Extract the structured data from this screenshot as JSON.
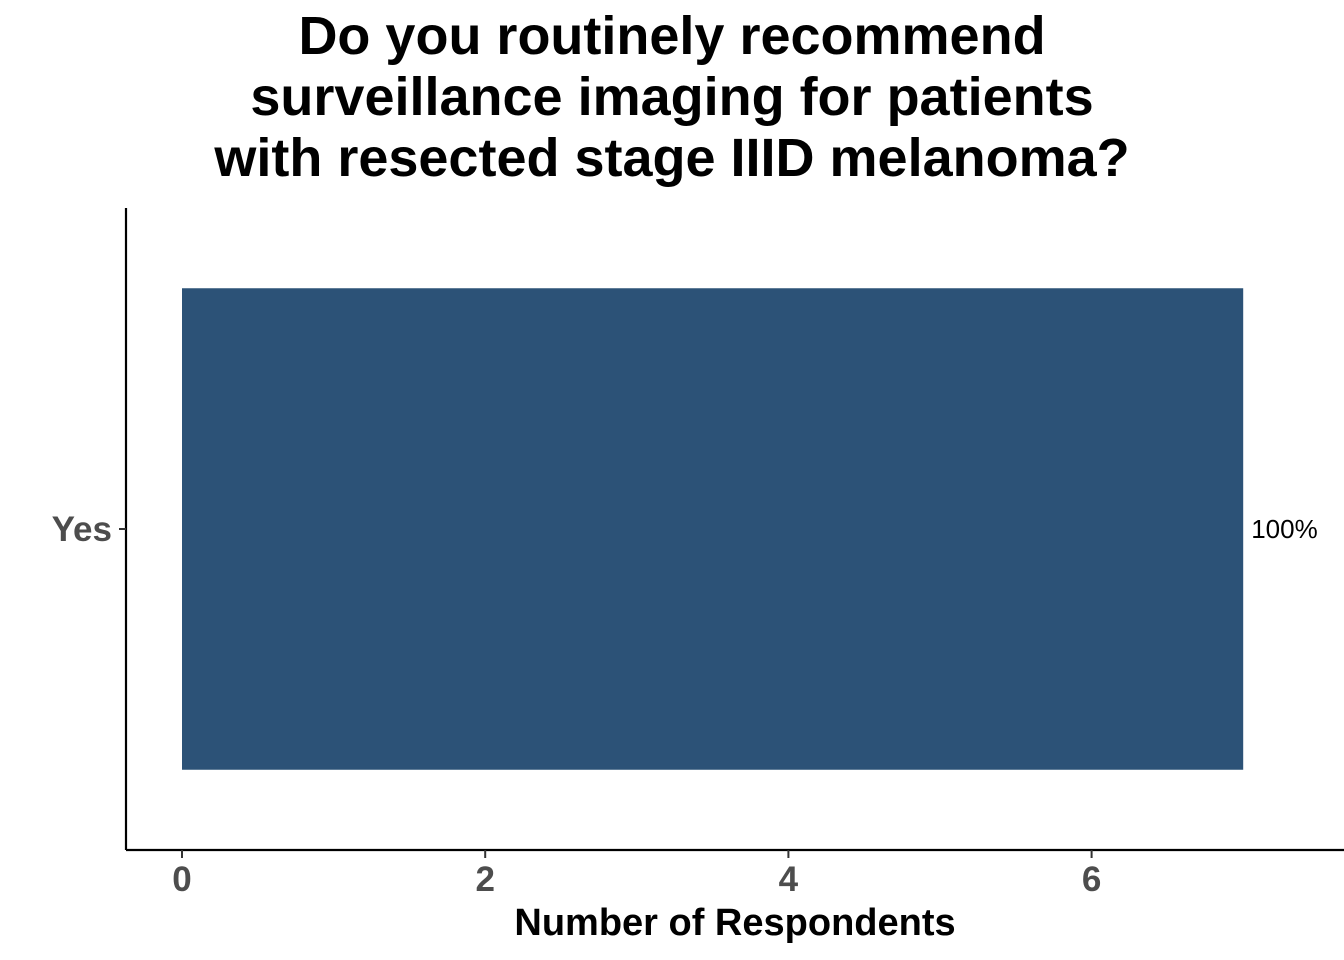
{
  "chart_data": {
    "type": "bar",
    "orientation": "horizontal",
    "title": "Do you routinely recommend\nsurveillance imaging for patients\nwith resected stage IIID melanoma?",
    "xlabel": "Number of Respondents",
    "ylabel": "",
    "categories": [
      "Yes"
    ],
    "values": [
      7
    ],
    "data_labels": [
      "100%"
    ],
    "xlim": [
      0,
      7
    ],
    "x_ticks": [
      0,
      2,
      4,
      6
    ],
    "grid": false,
    "legend": "none",
    "bar_color": "#2c5277"
  }
}
